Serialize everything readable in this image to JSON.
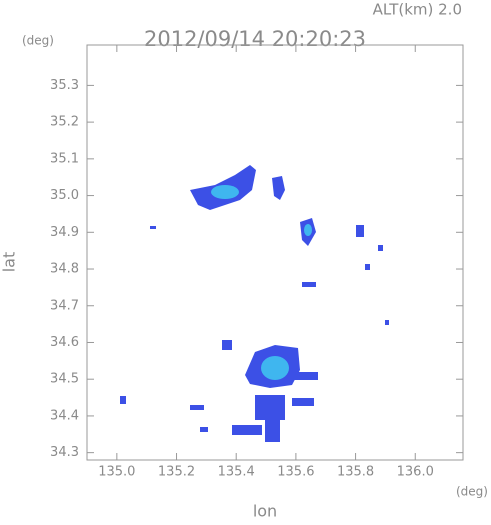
{
  "chart_data": {
    "type": "map",
    "title": "2012/09/14 20:20:23",
    "subtitle": "ALT(km)  2.0",
    "y_unit": "(deg)",
    "x_unit": "(deg)",
    "x_label": "lon",
    "y_label": "lat",
    "xlim": [
      134.9,
      136.16
    ],
    "ylim": [
      34.28,
      35.41
    ],
    "xticks": [
      {
        "value": 135,
        "label": "135.0"
      },
      135.2,
      135.4,
      135.6,
      135.8,
      {
        "value": 136,
        "label": "136.0"
      }
    ],
    "yticks": [
      34.3,
      34.4,
      34.5,
      34.6,
      34.7,
      34.8,
      34.9,
      {
        "value": 35,
        "label": "35.0"
      },
      35.1,
      35.2,
      35.3
    ],
    "color": "#3c50e6"
  }
}
